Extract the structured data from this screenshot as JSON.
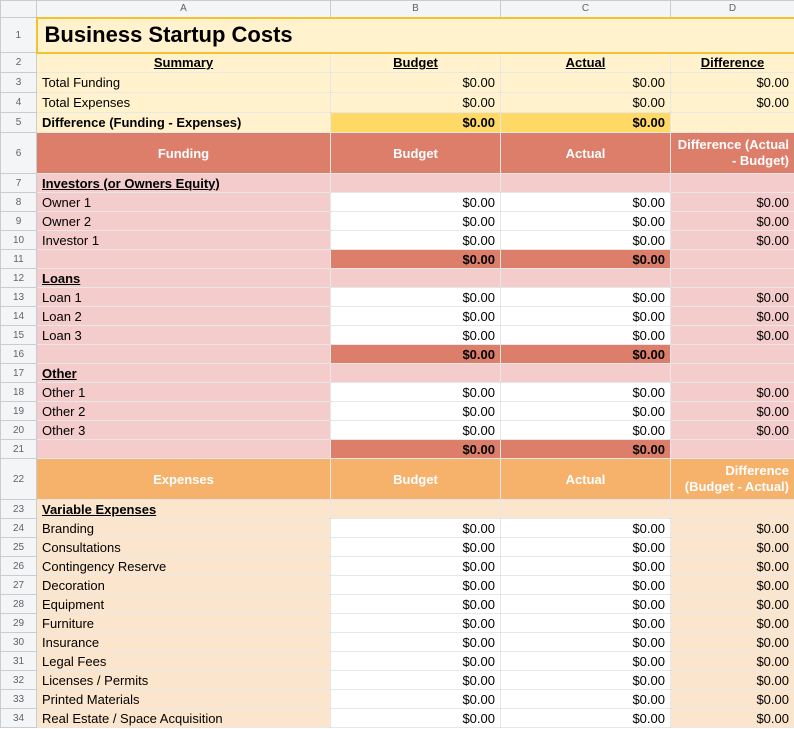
{
  "colors": {
    "cream": "#fff2cc",
    "gold_accent": "#ffd966",
    "gold_border": "#f1c232",
    "funding_header": "#dd7e6b",
    "funding_tint": "#f4cccc",
    "expenses_header": "#f6b26b",
    "expenses_tint": "#fce5cd"
  },
  "columns": [
    "A",
    "B",
    "C",
    "D"
  ],
  "rows": [
    {
      "n": "1",
      "type": "title",
      "cells": {
        "a": "Business Startup Costs"
      }
    },
    {
      "n": "2",
      "type": "head",
      "cells": {
        "a": "Summary",
        "b": "Budget",
        "c": "Actual",
        "d": "Difference"
      }
    },
    {
      "n": "3",
      "type": "data",
      "cells": {
        "a": "Total Funding",
        "b": "$0.00",
        "c": "$0.00",
        "d": "$0.00"
      }
    },
    {
      "n": "4",
      "type": "data",
      "cells": {
        "a": "Total Expenses",
        "b": "$0.00",
        "c": "$0.00",
        "d": "$0.00"
      }
    },
    {
      "n": "5",
      "type": "total",
      "cells": {
        "a": "Difference (Funding - Expenses)",
        "b": "$0.00",
        "c": "$0.00",
        "d": ""
      }
    },
    {
      "n": "6",
      "type": "band",
      "theme": "funding",
      "cells": {
        "a": "Funding",
        "b": "Budget",
        "c": "Actual",
        "d": "Difference (Actual - Budget)"
      }
    },
    {
      "n": "7",
      "type": "section",
      "theme": "funding",
      "cells": {
        "a": "Investors (or Owners Equity)",
        "b": "",
        "c": "",
        "d": ""
      }
    },
    {
      "n": "8",
      "type": "entry",
      "theme": "funding",
      "cells": {
        "a": "Owner 1",
        "b": "$0.00",
        "c": "$0.00",
        "d": "$0.00"
      }
    },
    {
      "n": "9",
      "type": "entry",
      "theme": "funding",
      "cells": {
        "a": "Owner 2",
        "b": "$0.00",
        "c": "$0.00",
        "d": "$0.00"
      }
    },
    {
      "n": "10",
      "type": "entry",
      "theme": "funding",
      "cells": {
        "a": "Investor 1",
        "b": "$0.00",
        "c": "$0.00",
        "d": "$0.00"
      }
    },
    {
      "n": "11",
      "type": "subtotal",
      "theme": "funding",
      "cells": {
        "a": "",
        "b": "$0.00",
        "c": "$0.00",
        "d": ""
      }
    },
    {
      "n": "12",
      "type": "section",
      "theme": "funding",
      "cells": {
        "a": "Loans",
        "b": "",
        "c": "",
        "d": ""
      }
    },
    {
      "n": "13",
      "type": "entry",
      "theme": "funding",
      "cells": {
        "a": "Loan 1",
        "b": "$0.00",
        "c": "$0.00",
        "d": "$0.00"
      }
    },
    {
      "n": "14",
      "type": "entry",
      "theme": "funding",
      "cells": {
        "a": "Loan 2",
        "b": "$0.00",
        "c": "$0.00",
        "d": "$0.00"
      }
    },
    {
      "n": "15",
      "type": "entry",
      "theme": "funding",
      "cells": {
        "a": "Loan 3",
        "b": "$0.00",
        "c": "$0.00",
        "d": "$0.00"
      }
    },
    {
      "n": "16",
      "type": "subtotal",
      "theme": "funding",
      "cells": {
        "a": "",
        "b": "$0.00",
        "c": "$0.00",
        "d": ""
      }
    },
    {
      "n": "17",
      "type": "section",
      "theme": "funding",
      "cells": {
        "a": "Other",
        "b": "",
        "c": "",
        "d": ""
      }
    },
    {
      "n": "18",
      "type": "entry",
      "theme": "funding",
      "cells": {
        "a": "Other 1",
        "b": "$0.00",
        "c": "$0.00",
        "d": "$0.00"
      }
    },
    {
      "n": "19",
      "type": "entry",
      "theme": "funding",
      "cells": {
        "a": "Other 2",
        "b": "$0.00",
        "c": "$0.00",
        "d": "$0.00"
      }
    },
    {
      "n": "20",
      "type": "entry",
      "theme": "funding",
      "cells": {
        "a": "Other 3",
        "b": "$0.00",
        "c": "$0.00",
        "d": "$0.00"
      }
    },
    {
      "n": "21",
      "type": "subtotal",
      "theme": "funding",
      "cells": {
        "a": "",
        "b": "$0.00",
        "c": "$0.00",
        "d": ""
      }
    },
    {
      "n": "22",
      "type": "band",
      "theme": "expenses",
      "cells": {
        "a": "Expenses",
        "b": "Budget",
        "c": "Actual",
        "d": "Difference (Budget - Actual)"
      }
    },
    {
      "n": "23",
      "type": "section",
      "theme": "expenses",
      "cells": {
        "a": "Variable Expenses",
        "b": "",
        "c": "",
        "d": ""
      }
    },
    {
      "n": "24",
      "type": "entry",
      "theme": "expenses",
      "cells": {
        "a": "Branding",
        "b": "$0.00",
        "c": "$0.00",
        "d": "$0.00"
      }
    },
    {
      "n": "25",
      "type": "entry",
      "theme": "expenses",
      "cells": {
        "a": "Consultations",
        "b": "$0.00",
        "c": "$0.00",
        "d": "$0.00"
      }
    },
    {
      "n": "26",
      "type": "entry",
      "theme": "expenses",
      "cells": {
        "a": "Contingency Reserve",
        "b": "$0.00",
        "c": "$0.00",
        "d": "$0.00"
      }
    },
    {
      "n": "27",
      "type": "entry",
      "theme": "expenses",
      "cells": {
        "a": "Decoration",
        "b": "$0.00",
        "c": "$0.00",
        "d": "$0.00"
      }
    },
    {
      "n": "28",
      "type": "entry",
      "theme": "expenses",
      "cells": {
        "a": "Equipment",
        "b": "$0.00",
        "c": "$0.00",
        "d": "$0.00"
      }
    },
    {
      "n": "29",
      "type": "entry",
      "theme": "expenses",
      "cells": {
        "a": "Furniture",
        "b": "$0.00",
        "c": "$0.00",
        "d": "$0.00"
      }
    },
    {
      "n": "30",
      "type": "entry",
      "theme": "expenses",
      "cells": {
        "a": "Insurance",
        "b": "$0.00",
        "c": "$0.00",
        "d": "$0.00"
      }
    },
    {
      "n": "31",
      "type": "entry",
      "theme": "expenses",
      "cells": {
        "a": "Legal Fees",
        "b": "$0.00",
        "c": "$0.00",
        "d": "$0.00"
      }
    },
    {
      "n": "32",
      "type": "entry",
      "theme": "expenses",
      "cells": {
        "a": "Licenses / Permits",
        "b": "$0.00",
        "c": "$0.00",
        "d": "$0.00"
      }
    },
    {
      "n": "33",
      "type": "entry",
      "theme": "expenses",
      "cells": {
        "a": "Printed Materials",
        "b": "$0.00",
        "c": "$0.00",
        "d": "$0.00"
      }
    },
    {
      "n": "34",
      "type": "entry",
      "theme": "expenses",
      "cells": {
        "a": "Real Estate / Space Acquisition",
        "b": "$0.00",
        "c": "$0.00",
        "d": "$0.00"
      }
    }
  ]
}
